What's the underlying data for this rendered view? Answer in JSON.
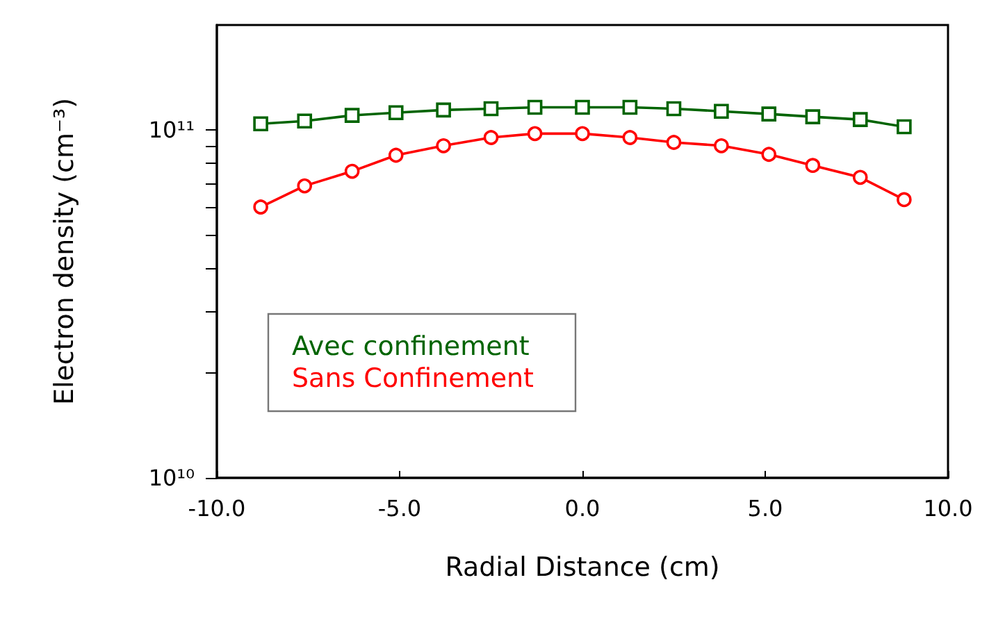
{
  "chart_data": {
    "type": "line",
    "xlabel": "Radial Distance (cm)",
    "ylabel": "Electron density (cm⁻³)",
    "log": "y",
    "xlim": [
      -10,
      10
    ],
    "ylim": [
      10000000000.0,
      200000000000.0
    ],
    "xticks": [
      {
        "value": -10,
        "label": "-10.0"
      },
      {
        "value": -5,
        "label": "-5.0"
      },
      {
        "value": 0,
        "label": "0.0"
      },
      {
        "value": 5,
        "label": "5.0"
      },
      {
        "value": 10,
        "label": "10.0"
      }
    ],
    "yticks": [
      {
        "value": 10000000000.0,
        "label": "10¹⁰"
      },
      {
        "value": 20000000000.0,
        "label": null
      },
      {
        "value": 30000000000.0,
        "label": null
      },
      {
        "value": 40000000000.0,
        "label": null
      },
      {
        "value": 50000000000.0,
        "label": null
      },
      {
        "value": 60000000000.0,
        "label": null
      },
      {
        "value": 70000000000.0,
        "label": null
      },
      {
        "value": 80000000000.0,
        "label": null
      },
      {
        "value": 90000000000.0,
        "label": null
      },
      {
        "value": 100000000000.0,
        "label": "10¹¹"
      }
    ],
    "x": [
      -8.8,
      -7.6,
      -6.3,
      -5.1,
      -3.8,
      -2.5,
      -1.3,
      0,
      1.3,
      2.5,
      3.8,
      5.1,
      6.3,
      7.6,
      8.8
    ],
    "grid": false,
    "legend": "left",
    "series": [
      {
        "name": "Avec confinement",
        "color": "#006400",
        "marker": "square",
        "values": [
          104000000000.0,
          106000000000.0,
          110000000000.0,
          112000000000.0,
          114000000000.0,
          115000000000.0,
          116000000000.0,
          116000000000.0,
          116000000000.0,
          115000000000.0,
          113000000000.0,
          111000000000.0,
          109000000000.0,
          107000000000.0,
          102000000000.0
        ]
      },
      {
        "name": "Sans Confinement",
        "color": "#ff0000",
        "marker": "circle",
        "values": [
          60000000000.0,
          69000000000.0,
          76000000000.0,
          84500000000.0,
          90000000000.0,
          95000000000.0,
          97500000000.0,
          97500000000.0,
          95000000000.0,
          92000000000.0,
          90000000000.0,
          85000000000.0,
          79000000000.0,
          73000000000.0,
          63000000000.0
        ]
      }
    ]
  }
}
